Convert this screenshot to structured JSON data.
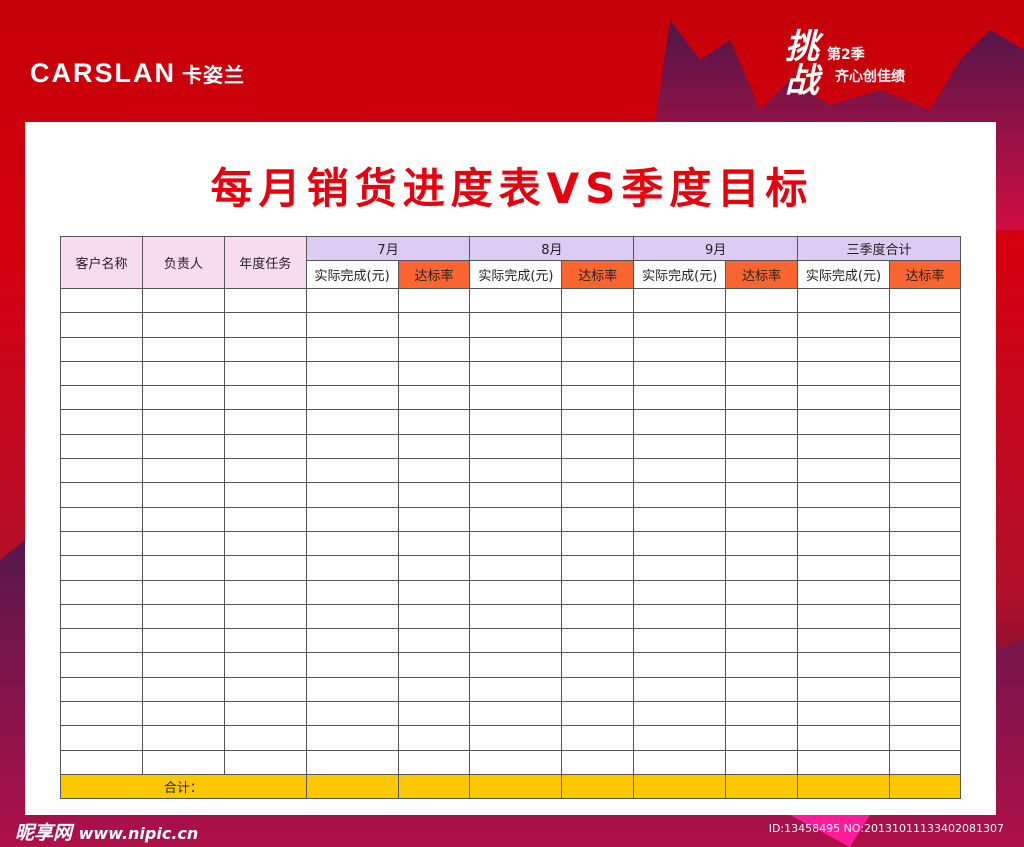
{
  "brand": {
    "logo_text": "CARSLAN",
    "logo_cn": "卡姿兰"
  },
  "slogan": {
    "big": "挑战",
    "line1": "第2季",
    "line2": "齐心创佳绩"
  },
  "title": "每月销货进度表VS季度目标",
  "table": {
    "fixed_headers": [
      "客户名称",
      "负责人",
      "年度任务"
    ],
    "groups": [
      "7月",
      "8月",
      "9月",
      "三季度合计"
    ],
    "sub_headers": [
      "实际完成(元)",
      "达标率"
    ],
    "body_rows": 20,
    "total_label": "合计："
  },
  "colors": {
    "title": "#e8000d",
    "fixed_header_bg": "#f7dced",
    "group_header_bg": "#dccbf3",
    "rate_header_bg": "#fb6630",
    "total_row_bg": "#fdc800"
  },
  "watermark": {
    "site": "昵享网",
    "url": "www.nipic.cn",
    "id": "ID:13458495 NO:20131011133402081307"
  }
}
